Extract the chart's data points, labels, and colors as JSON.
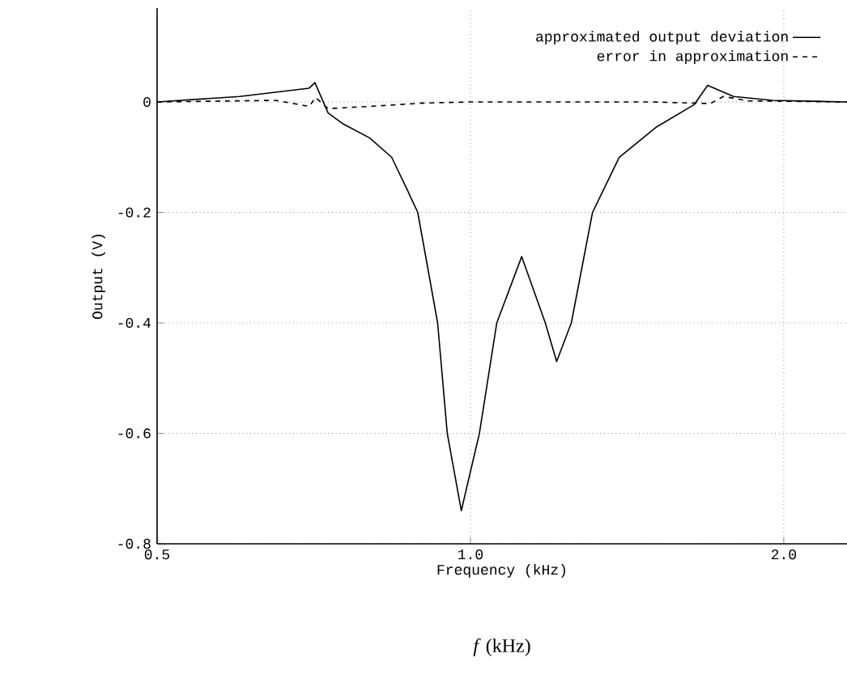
{
  "chart_data": {
    "type": "line",
    "xlabel": "Frequency (kHz)",
    "ylabel": "Output (V)",
    "log": "x",
    "grid": true,
    "legend": "top right",
    "xlim": [
      0.5,
      2.3
    ],
    "ylim": [
      -0.8,
      0.17
    ],
    "xticks": [
      {
        "value": 0.5,
        "label": "0.5"
      },
      {
        "value": 1.0,
        "label": "1.0"
      },
      {
        "value": 2.0,
        "label": "2.0"
      }
    ],
    "yticks": [
      -0.8,
      -0.6,
      -0.4,
      -0.2,
      0
    ],
    "annotations": [
      "*f* (kHz)"
    ],
    "series": [
      {
        "name": "approximated output deviation",
        "color": "#000000",
        "line_style": "solid",
        "x": [
          0.5,
          0.6,
          0.7,
          0.709,
          0.73,
          0.755,
          0.8,
          0.84,
          0.87,
          0.89,
          0.93,
          0.95,
          0.98,
          1.02,
          1.06,
          1.12,
          1.18,
          1.21,
          1.25,
          1.31,
          1.39,
          1.51,
          1.64,
          1.69,
          1.79,
          1.95,
          2.3
        ],
        "values": [
          0.0,
          0.01,
          0.025,
          0.035,
          -0.02,
          -0.04,
          -0.065,
          -0.1,
          -0.16,
          -0.2,
          -0.4,
          -0.6,
          -0.74,
          -0.6,
          -0.4,
          -0.28,
          -0.4,
          -0.47,
          -0.4,
          -0.2,
          -0.1,
          -0.045,
          -0.005,
          0.03,
          0.01,
          0.003,
          0.0
        ]
      },
      {
        "name": "error in approximation",
        "color": "#000000",
        "line_style": "dashed",
        "x": [
          0.5,
          0.65,
          0.7,
          0.71,
          0.73,
          0.8,
          0.9,
          1.0,
          1.5,
          1.7,
          1.75,
          1.85,
          2.3
        ],
        "values": [
          0.0,
          0.003,
          -0.008,
          0.008,
          -0.012,
          -0.008,
          -0.002,
          0.0,
          0.0,
          -0.003,
          0.01,
          0.002,
          0.0
        ]
      }
    ]
  }
}
